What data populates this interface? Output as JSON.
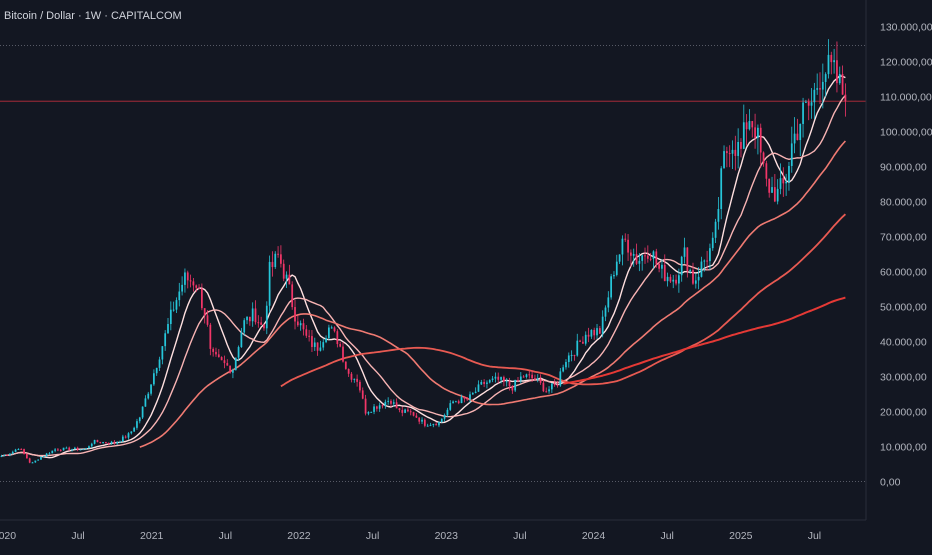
{
  "header": {
    "title": "Bitcoin / Dollar · 1W · CAPITALCOM"
  },
  "colors": {
    "background": "#131722",
    "candle_up": "#26c6da",
    "candle_down": "#f23668",
    "axis_text": "#b2b5be",
    "grid_dotted": "#3a3e4b"
  },
  "chart_data": {
    "type": "candlestick",
    "title": "Bitcoin / Dollar · 1W · CAPITALCOM",
    "y_ticks": [
      "130.000,00",
      "120.000,00",
      "110.000,00",
      "100.000,00",
      "90.000,00",
      "80.000,00",
      "70.000,00",
      "60.000,00",
      "50.000,00",
      "40.000,00",
      "30.000,00",
      "20.000,00",
      "10.000,00",
      "0,00"
    ],
    "y_tick_values": [
      130000,
      120000,
      110000,
      100000,
      90000,
      80000,
      70000,
      60000,
      50000,
      40000,
      30000,
      20000,
      10000,
      0
    ],
    "ylim": [
      -11000,
      137500
    ],
    "x_ticks": [
      {
        "label": "2020",
        "t": 2020.0
      },
      {
        "label": "Jul",
        "t": 2020.5
      },
      {
        "label": "2021",
        "t": 2021.0
      },
      {
        "label": "Jul",
        "t": 2021.5
      },
      {
        "label": "2022",
        "t": 2022.0
      },
      {
        "label": "Jul",
        "t": 2022.5
      },
      {
        "label": "2023",
        "t": 2023.0
      },
      {
        "label": "Jul",
        "t": 2023.5
      },
      {
        "label": "2024",
        "t": 2024.0
      },
      {
        "label": "Jul",
        "t": 2024.5
      },
      {
        "label": "2025",
        "t": 2025.0
      },
      {
        "label": "Jul",
        "t": 2025.5
      }
    ],
    "xlim": [
      2019.97,
      2025.85
    ],
    "horizontal_lines": [
      {
        "value": 124500,
        "color": "#787b86",
        "style": "dotted"
      },
      {
        "value": 108600,
        "color": "#f23645",
        "style": "solid"
      },
      {
        "value": 0,
        "color": "#787b86",
        "style": "dotted"
      }
    ],
    "price_anchors": [
      [
        2019.98,
        7300
      ],
      [
        2020.05,
        8300
      ],
      [
        2020.1,
        9800
      ],
      [
        2020.18,
        5000
      ],
      [
        2020.24,
        6800
      ],
      [
        2020.35,
        9300
      ],
      [
        2020.55,
        9200
      ],
      [
        2020.6,
        11400
      ],
      [
        2020.75,
        11000
      ],
      [
        2020.85,
        13500
      ],
      [
        2020.92,
        18500
      ],
      [
        2021.0,
        29000
      ],
      [
        2021.08,
        40000
      ],
      [
        2021.15,
        50000
      ],
      [
        2021.22,
        58000
      ],
      [
        2021.3,
        57000
      ],
      [
        2021.37,
        47000
      ],
      [
        2021.4,
        36000
      ],
      [
        2021.47,
        34000
      ],
      [
        2021.55,
        32000
      ],
      [
        2021.62,
        45000
      ],
      [
        2021.7,
        48000
      ],
      [
        2021.76,
        43000
      ],
      [
        2021.8,
        60000
      ],
      [
        2021.86,
        64500
      ],
      [
        2021.92,
        57000
      ],
      [
        2021.97,
        48000
      ],
      [
        2022.05,
        41000
      ],
      [
        2022.12,
        38000
      ],
      [
        2022.2,
        44000
      ],
      [
        2022.27,
        40000
      ],
      [
        2022.33,
        31000
      ],
      [
        2022.4,
        29000
      ],
      [
        2022.45,
        20000
      ],
      [
        2022.55,
        22000
      ],
      [
        2022.62,
        23500
      ],
      [
        2022.68,
        20000
      ],
      [
        2022.77,
        19500
      ],
      [
        2022.85,
        16500
      ],
      [
        2022.95,
        16800
      ],
      [
        2023.05,
        23000
      ],
      [
        2023.15,
        23500
      ],
      [
        2023.25,
        28000
      ],
      [
        2023.35,
        29000
      ],
      [
        2023.45,
        27000
      ],
      [
        2023.52,
        30200
      ],
      [
        2023.6,
        29300
      ],
      [
        2023.68,
        26000
      ],
      [
        2023.75,
        27500
      ],
      [
        2023.8,
        34500
      ],
      [
        2023.88,
        38000
      ],
      [
        2023.95,
        42500
      ],
      [
        2024.05,
        43000
      ],
      [
        2024.15,
        63000
      ],
      [
        2024.22,
        69000
      ],
      [
        2024.3,
        63000
      ],
      [
        2024.38,
        67000
      ],
      [
        2024.45,
        60000
      ],
      [
        2024.55,
        58000
      ],
      [
        2024.62,
        65000
      ],
      [
        2024.68,
        57000
      ],
      [
        2024.75,
        63000
      ],
      [
        2024.82,
        68000
      ],
      [
        2024.88,
        91000
      ],
      [
        2024.93,
        98000
      ],
      [
        2025.0,
        94000
      ],
      [
        2025.05,
        105000
      ],
      [
        2025.1,
        101000
      ],
      [
        2025.17,
        85000
      ],
      [
        2025.25,
        82000
      ],
      [
        2025.3,
        85000
      ],
      [
        2025.35,
        97000
      ],
      [
        2025.42,
        105000
      ],
      [
        2025.48,
        108000
      ],
      [
        2025.55,
        118000
      ],
      [
        2025.62,
        117000
      ],
      [
        2025.68,
        112000
      ],
      [
        2025.72,
        108600
      ]
    ],
    "moving_averages": [
      {
        "period": 10,
        "color": "#ffe0e0",
        "width": 1.4
      },
      {
        "period": 20,
        "color": "#f8b4b4",
        "width": 1.4
      },
      {
        "period": 50,
        "color": "#ef7a72",
        "width": 1.6
      },
      {
        "period": 100,
        "color": "#e85a52",
        "width": 1.8
      },
      {
        "period": 200,
        "color": "#e53935",
        "width": 2.0
      }
    ]
  }
}
